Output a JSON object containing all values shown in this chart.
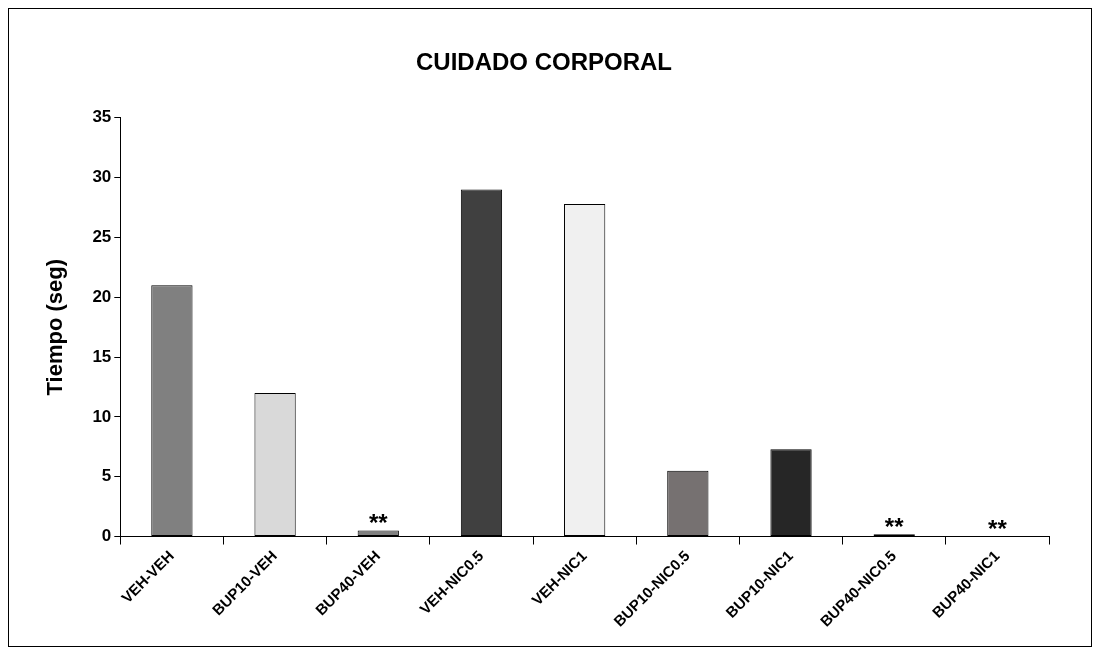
{
  "chart_data": {
    "type": "bar",
    "title": "CUIDADO CORPORAL",
    "ylabel": "Tiempo (seg)",
    "categories": [
      "VEH-VEH",
      "BUP10-VEH",
      "BUP40-VEH",
      "VEH-NIC0.5",
      "VEH-NIC1",
      "BUP10-NIC0.5",
      "BUP10-NIC1",
      "BUP40-NIC0.5",
      "BUP40-NIC1"
    ],
    "values": [
      21,
      12,
      0.5,
      29,
      27.8,
      5.5,
      7.3,
      0.2,
      0
    ],
    "colors": [
      "#808080",
      "#d9d9d9",
      "#808080",
      "#404040",
      "#f0f0f0",
      "#767171",
      "#262626",
      "#000000",
      "#808080"
    ],
    "ylim": [
      0,
      35
    ],
    "yticks": [
      0,
      5,
      10,
      15,
      20,
      25,
      30,
      35
    ],
    "grid": false,
    "legend": false,
    "annotations": [
      {
        "text": "**",
        "x": "BUP40-VEH",
        "y": 0.5
      },
      {
        "text": "**",
        "x": "BUP40-NIC0.5",
        "y": 0.2
      },
      {
        "text": "**",
        "x": "BUP40-NIC1",
        "y": 0
      }
    ]
  }
}
